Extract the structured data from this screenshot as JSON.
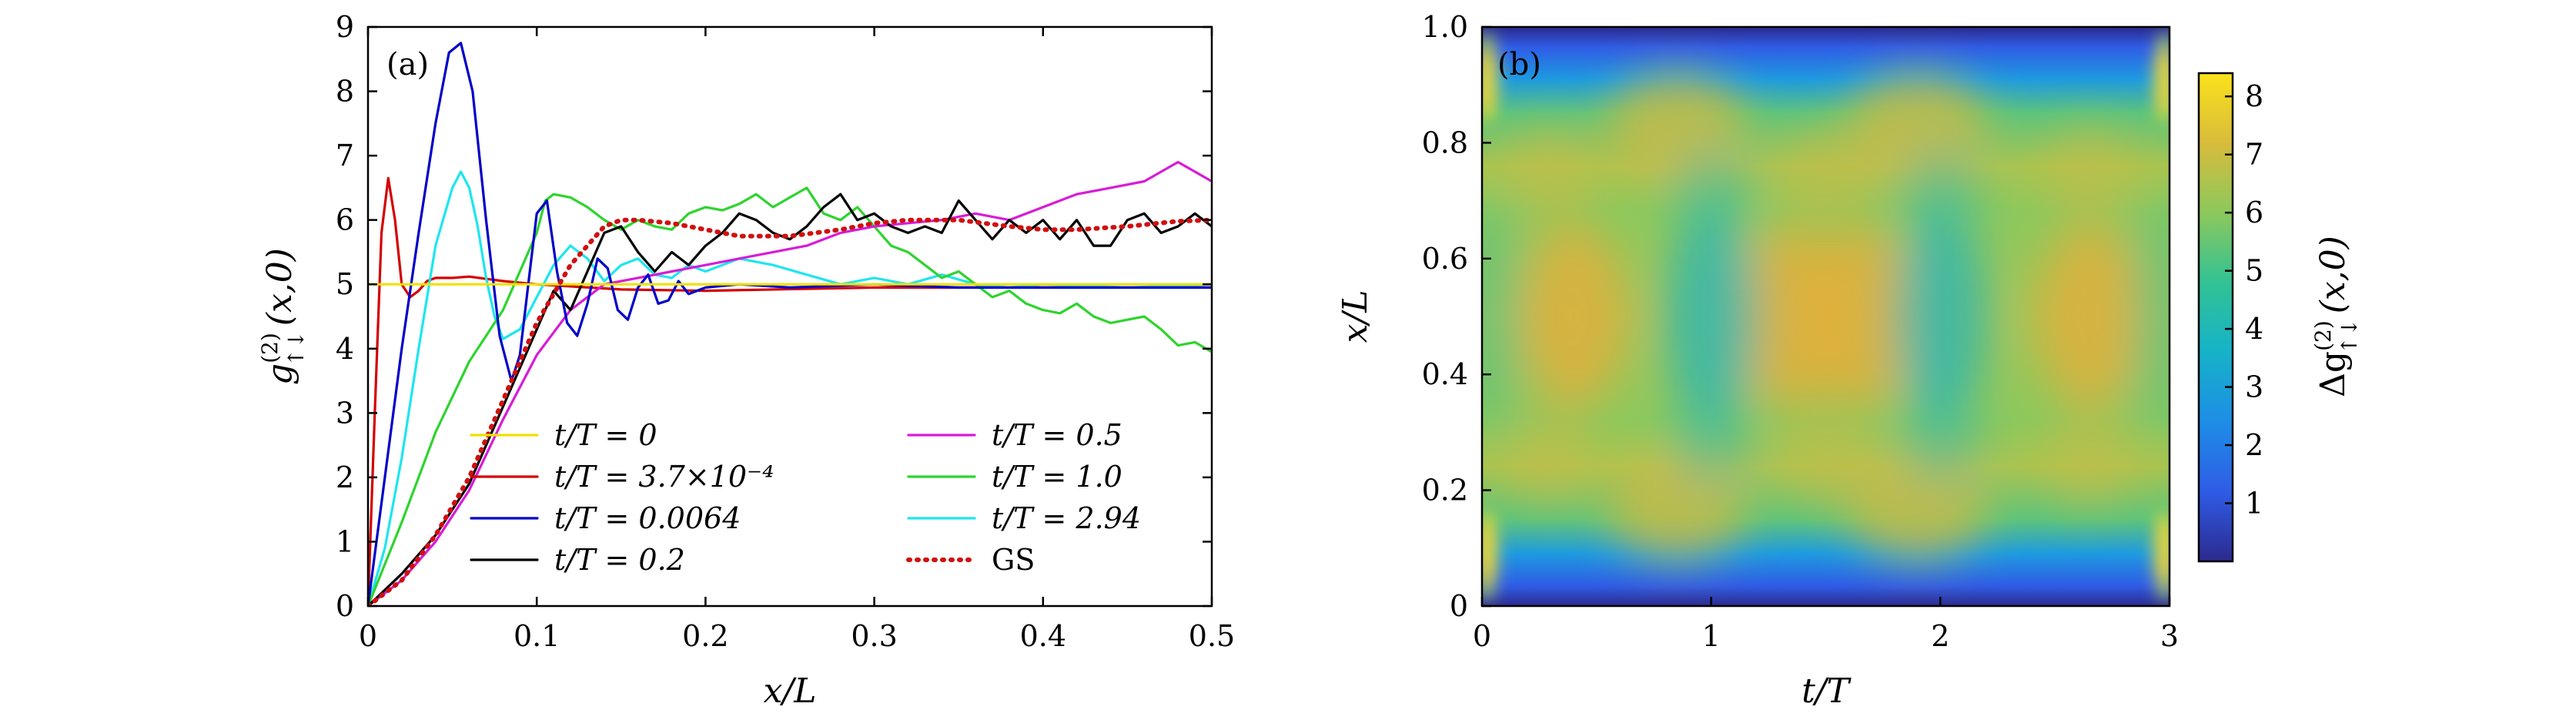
{
  "chart_data": [
    {
      "panel": "(a)",
      "type": "line",
      "xlabel": "x/L",
      "ylabel": "g↑↓(2)(x,0)",
      "ylabel_main": "g",
      "ylabel_sup": "(2)",
      "ylabel_sub": "↑↓",
      "ylabel_args": "(x,0)",
      "xlim": [
        0,
        0.5
      ],
      "ylim": [
        0,
        9
      ],
      "xticks": [
        "0",
        "0.1",
        "0.2",
        "0.3",
        "0.4",
        "0.5"
      ],
      "yticks": [
        "0",
        "1",
        "2",
        "3",
        "4",
        "5",
        "6",
        "7",
        "8",
        "9"
      ],
      "legend_position": "lower-right",
      "series": [
        {
          "name": "t/T = 0",
          "color": "#f0e000",
          "dash": "solid",
          "x": [
            0,
            0.5
          ],
          "y": [
            5.0,
            5.0
          ]
        },
        {
          "name": "t/T = 3.7×10⁻⁴",
          "color": "#d40000",
          "dash": "solid",
          "x": [
            0,
            0.004,
            0.008,
            0.012,
            0.016,
            0.02,
            0.025,
            0.03,
            0.035,
            0.04,
            0.05,
            0.06,
            0.08,
            0.1,
            0.15,
            0.2,
            0.3,
            0.4,
            0.5
          ],
          "y": [
            0,
            3.0,
            5.8,
            6.65,
            6.0,
            5.0,
            4.8,
            4.9,
            5.05,
            5.1,
            5.1,
            5.12,
            5.05,
            5.0,
            4.92,
            4.9,
            4.95,
            4.95,
            4.95
          ]
        },
        {
          "name": "t/T = 0.0064",
          "color": "#0000c8",
          "dash": "solid",
          "x": [
            0,
            0.01,
            0.02,
            0.03,
            0.04,
            0.048,
            0.055,
            0.062,
            0.07,
            0.078,
            0.085,
            0.09,
            0.095,
            0.1,
            0.106,
            0.112,
            0.118,
            0.124,
            0.13,
            0.136,
            0.142,
            0.148,
            0.154,
            0.16,
            0.166,
            0.172,
            0.178,
            0.184,
            0.19,
            0.2,
            0.22,
            0.25,
            0.3,
            0.35,
            0.4,
            0.45,
            0.5
          ],
          "y": [
            0,
            2.0,
            4.0,
            5.8,
            7.5,
            8.6,
            8.75,
            8.0,
            6.0,
            4.2,
            3.5,
            3.9,
            5.0,
            6.1,
            6.3,
            5.2,
            4.4,
            4.2,
            4.7,
            5.4,
            5.25,
            4.6,
            4.45,
            4.95,
            5.15,
            4.7,
            4.75,
            5.05,
            4.85,
            4.95,
            5.0,
            4.95,
            5.0,
            4.95,
            4.95,
            4.95,
            4.95
          ]
        },
        {
          "name": "t/T = 0.2",
          "color": "#000000",
          "dash": "solid",
          "x": [
            0,
            0.02,
            0.04,
            0.06,
            0.08,
            0.1,
            0.11,
            0.12,
            0.13,
            0.14,
            0.15,
            0.16,
            0.17,
            0.18,
            0.19,
            0.2,
            0.21,
            0.22,
            0.23,
            0.24,
            0.25,
            0.26,
            0.27,
            0.28,
            0.29,
            0.3,
            0.31,
            0.32,
            0.33,
            0.34,
            0.35,
            0.36,
            0.37,
            0.38,
            0.39,
            0.4,
            0.41,
            0.42,
            0.43,
            0.44,
            0.45,
            0.46,
            0.47,
            0.48,
            0.49,
            0.5
          ],
          "y": [
            0,
            0.5,
            1.1,
            1.9,
            3.1,
            4.3,
            4.9,
            4.6,
            5.2,
            5.8,
            5.9,
            5.5,
            5.2,
            5.5,
            5.3,
            5.6,
            5.8,
            6.1,
            6.0,
            5.8,
            5.7,
            5.9,
            6.2,
            6.4,
            6.0,
            6.1,
            5.9,
            5.8,
            5.9,
            5.8,
            6.3,
            6.0,
            5.7,
            6.0,
            5.8,
            6.0,
            5.7,
            6.0,
            5.6,
            5.6,
            6.0,
            6.1,
            5.8,
            5.9,
            6.1,
            5.9
          ]
        },
        {
          "name": "t/T = 0.5",
          "color": "#d81bd8",
          "dash": "solid",
          "x": [
            0,
            0.02,
            0.04,
            0.06,
            0.08,
            0.1,
            0.12,
            0.14,
            0.16,
            0.18,
            0.2,
            0.22,
            0.24,
            0.26,
            0.28,
            0.3,
            0.32,
            0.34,
            0.36,
            0.38,
            0.4,
            0.42,
            0.44,
            0.46,
            0.48,
            0.5
          ],
          "y": [
            0,
            0.4,
            1.0,
            1.8,
            2.9,
            3.9,
            4.6,
            5.0,
            5.1,
            5.2,
            5.3,
            5.4,
            5.5,
            5.6,
            5.8,
            5.9,
            5.95,
            6.0,
            6.1,
            6.0,
            6.2,
            6.4,
            6.5,
            6.6,
            6.9,
            6.6
          ]
        },
        {
          "name": "t/T = 1.0",
          "color": "#2ed42e",
          "dash": "solid",
          "x": [
            0,
            0.02,
            0.04,
            0.06,
            0.08,
            0.1,
            0.105,
            0.11,
            0.12,
            0.13,
            0.14,
            0.15,
            0.16,
            0.17,
            0.18,
            0.19,
            0.2,
            0.21,
            0.22,
            0.23,
            0.24,
            0.25,
            0.26,
            0.27,
            0.28,
            0.29,
            0.3,
            0.31,
            0.32,
            0.33,
            0.34,
            0.35,
            0.36,
            0.37,
            0.38,
            0.39,
            0.4,
            0.41,
            0.42,
            0.43,
            0.44,
            0.45,
            0.46,
            0.47,
            0.48,
            0.49,
            0.5
          ],
          "y": [
            0,
            1.3,
            2.7,
            3.8,
            4.6,
            5.8,
            6.3,
            6.4,
            6.35,
            6.2,
            6.0,
            5.85,
            6.0,
            5.9,
            5.85,
            6.1,
            6.2,
            6.15,
            6.25,
            6.4,
            6.2,
            6.35,
            6.5,
            6.1,
            6.0,
            6.2,
            5.9,
            5.6,
            5.5,
            5.3,
            5.1,
            5.2,
            5.0,
            4.8,
            4.9,
            4.7,
            4.6,
            4.55,
            4.7,
            4.5,
            4.4,
            4.45,
            4.5,
            4.3,
            4.05,
            4.1,
            3.95
          ]
        },
        {
          "name": "t/T = 2.94",
          "color": "#1ee6ee",
          "dash": "solid",
          "x": [
            0,
            0.01,
            0.02,
            0.03,
            0.04,
            0.05,
            0.055,
            0.06,
            0.065,
            0.07,
            0.075,
            0.08,
            0.09,
            0.1,
            0.11,
            0.12,
            0.13,
            0.14,
            0.15,
            0.16,
            0.17,
            0.18,
            0.19,
            0.2,
            0.22,
            0.24,
            0.26,
            0.28,
            0.3,
            0.32,
            0.34,
            0.36,
            0.38,
            0.4,
            0.45,
            0.5
          ],
          "y": [
            0,
            0.9,
            2.3,
            4.0,
            5.6,
            6.5,
            6.75,
            6.5,
            5.9,
            5.1,
            4.5,
            4.15,
            4.3,
            4.8,
            5.3,
            5.6,
            5.4,
            5.05,
            5.3,
            5.4,
            5.15,
            5.1,
            5.3,
            5.2,
            5.4,
            5.3,
            5.15,
            5.0,
            5.1,
            5.0,
            5.15,
            5.0,
            4.95,
            5.0,
            4.95,
            5.0
          ]
        },
        {
          "name": "GS",
          "color": "#d01010",
          "dash": "dotted",
          "x": [
            0,
            0.02,
            0.04,
            0.06,
            0.08,
            0.1,
            0.12,
            0.14,
            0.15,
            0.16,
            0.18,
            0.2,
            0.22,
            0.25,
            0.28,
            0.3,
            0.32,
            0.35,
            0.38,
            0.4,
            0.42,
            0.45,
            0.48,
            0.5
          ],
          "y": [
            0,
            0.4,
            1.1,
            2.0,
            3.2,
            4.4,
            5.3,
            5.9,
            6.0,
            6.0,
            5.95,
            5.85,
            5.75,
            5.75,
            5.85,
            5.95,
            6.0,
            6.0,
            5.9,
            5.85,
            5.85,
            5.9,
            5.98,
            6.0
          ]
        }
      ]
    },
    {
      "panel": "(b)",
      "type": "heatmap",
      "xlabel": "t/T",
      "ylabel": "x/L",
      "xlim": [
        0,
        3
      ],
      "ylim": [
        0,
        1
      ],
      "xticks": [
        "0",
        "1",
        "2",
        "3"
      ],
      "yticks": [
        "0",
        "0.2",
        "0.4",
        "0.6",
        "0.8",
        "1.0"
      ],
      "colorbar": {
        "label": "Δg↑↓(2)(x,0)",
        "label_main": "Δg",
        "label_sup": "(2)",
        "label_sub": "↑↓",
        "label_args": "(x,0)",
        "range": [
          0,
          8.4
        ],
        "ticks": [
          "1",
          "2",
          "3",
          "4",
          "5",
          "6",
          "7",
          "8"
        ],
        "colors": [
          "#2c2a8e",
          "#2f5ce6",
          "#1e8ee6",
          "#16b2c8",
          "#32c294",
          "#8cc85c",
          "#d8bc3c",
          "#fbe21a"
        ]
      }
    }
  ]
}
